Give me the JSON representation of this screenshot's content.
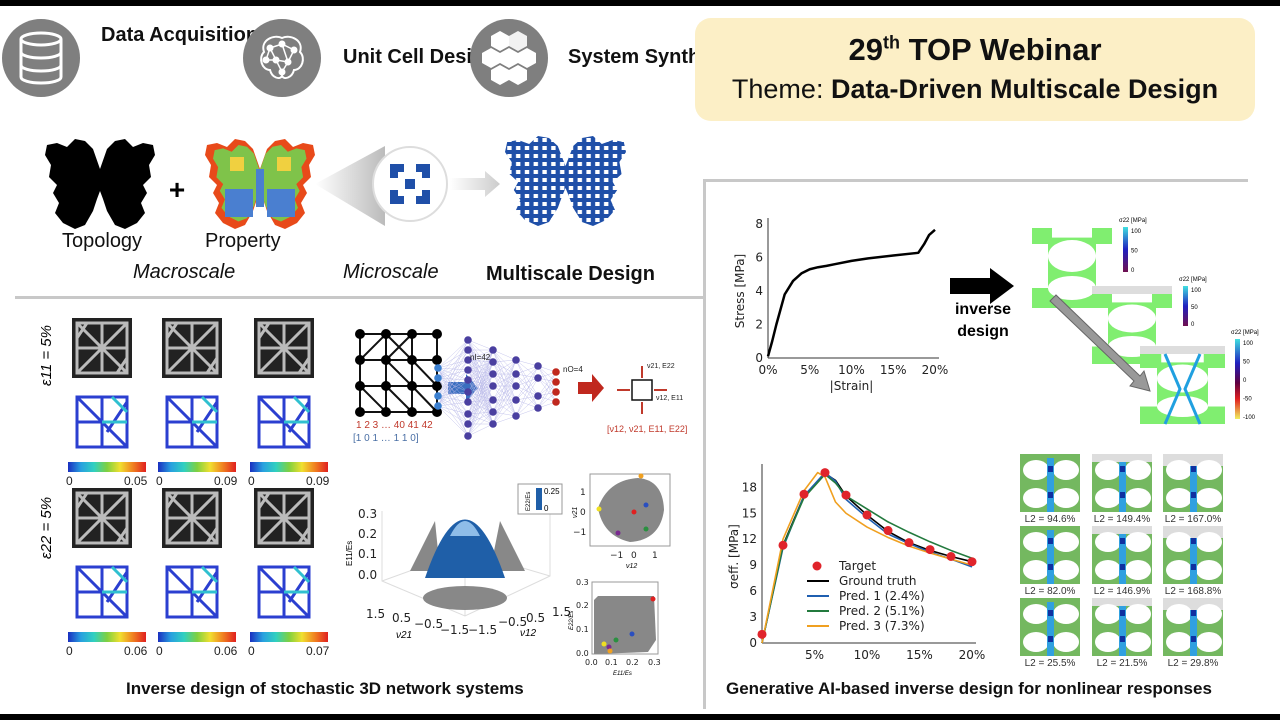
{
  "steps": [
    {
      "label": "Data Acquisition",
      "icon": "database-icon"
    },
    {
      "label": "Unit Cell Design",
      "icon": "network-brain-icon"
    },
    {
      "label": "System Synthesis",
      "icon": "hexagon-cluster-icon"
    }
  ],
  "title": {
    "number": "29",
    "suffix": "th",
    "rest": " TOP Webinar",
    "theme_prefix": "Theme: ",
    "theme": "Data-Driven Multiscale Design"
  },
  "macro": {
    "topology": "Topology",
    "plus": "+",
    "property": "Property",
    "macroscale": "Macroscale",
    "microscale": "Microscale",
    "multiscale": "Multiscale Design"
  },
  "lattice": {
    "row1_label": "ε11 = 5%",
    "row2_label": "ε22 = 5%",
    "colorbar_min": "0",
    "row1_max": [
      "0.05",
      "0.09",
      "0.09"
    ],
    "row2_max": [
      "0.06",
      "0.06",
      "0.07"
    ]
  },
  "nn": {
    "node_numbers": "1   2   3   …   40  41  42",
    "vector": "[1  0  1   …   1   1   0]",
    "n_in": "nI=42",
    "n_out": "nO=4",
    "top_out": "ν21, E22",
    "right_out": "ν12, E11",
    "output_vec": "[ν12, ν21, E11, E22]"
  },
  "scatter3d": {
    "zticks": [
      "0.3",
      "0.2",
      "0.1",
      "0.0"
    ],
    "zlabel": "E11/Es",
    "colorbar_label": "E22/Es",
    "colorbar_max": "0.25",
    "colorbar_min": "0",
    "xticks_left": [
      "1.5",
      "0.5",
      "−0.5",
      "−1.5"
    ],
    "xlabel_left": "ν21",
    "xticks_right": [
      "−1.5",
      "−0.5",
      "0.5",
      "1.5"
    ],
    "xlabel_right": "ν12"
  },
  "scatter_a": {
    "xticks": [
      "−1",
      "0",
      "1"
    ],
    "yticks": [
      "1",
      "0",
      "−1"
    ],
    "xlabel": "ν12",
    "ylabel": "ν21"
  },
  "scatter_b": {
    "xticks": [
      "0.0",
      "0.1",
      "0.2",
      "0.3"
    ],
    "yticks": [
      "0.3",
      "0.2",
      "0.1",
      "0.0"
    ],
    "xlabel": "E11/Es",
    "ylabel": "E22/Es"
  },
  "left_caption": "Inverse design of stochastic 3D network systems",
  "right_caption": "Generative AI-based inverse design for nonlinear responses",
  "inverse_label": "inverse design",
  "fields": {
    "label": "σ22 [MPa]",
    "cb1": [
      "100",
      "50",
      "0"
    ],
    "cb2": [
      "100",
      "50",
      "0"
    ],
    "cb3": [
      "100",
      "50",
      "0",
      "-50",
      "-100"
    ]
  },
  "l2_labels": [
    "L2 = 94.6%",
    "L2 = 149.4%",
    "L2 = 167.0%",
    "L2 = 82.0%",
    "L2 = 146.9%",
    "L2 = 168.8%",
    "L2 = 25.5%",
    "L2 = 21.5%",
    "L2 = 29.8%"
  ],
  "chart_data": [
    {
      "type": "line",
      "title": "",
      "xlabel": "|Strain|",
      "ylabel": "Stress [MPa]",
      "xlim": [
        0,
        20
      ],
      "ylim": [
        0,
        8
      ],
      "xticks": [
        0,
        5,
        10,
        15,
        20
      ],
      "xtick_labels": [
        "0%",
        "5%",
        "10%",
        "15%",
        "20%"
      ],
      "yticks": [
        0,
        2,
        4,
        6,
        8
      ],
      "series": [
        {
          "name": "stress-strain",
          "color": "#000000",
          "x": [
            0,
            0.5,
            1,
            2,
            3,
            4,
            5,
            6,
            7,
            8,
            10,
            12,
            15,
            18,
            18.7,
            19.3,
            20
          ],
          "y": [
            0.1,
            1.0,
            2.0,
            3.8,
            4.6,
            5.05,
            5.3,
            5.42,
            5.5,
            5.6,
            5.8,
            5.95,
            6.12,
            6.28,
            6.8,
            7.35,
            7.65
          ]
        }
      ]
    },
    {
      "type": "line",
      "title": "",
      "xlabel": "",
      "ylabel": "σeff. [MPa]",
      "xlim": [
        0,
        20
      ],
      "ylim": [
        0,
        20
      ],
      "xticks": [
        5,
        10,
        15,
        20
      ],
      "xtick_labels": [
        "5%",
        "10%",
        "15%",
        "20%"
      ],
      "yticks": [
        0,
        3,
        6,
        9,
        12,
        15,
        18
      ],
      "legend": "center",
      "series": [
        {
          "name": "Target",
          "kind": "scatter",
          "color": "#e0242b",
          "x": [
            0,
            2,
            4,
            6,
            8,
            10,
            12,
            14,
            16,
            18,
            20
          ],
          "y": [
            1,
            11.3,
            17.2,
            19.7,
            17.1,
            14.8,
            13.0,
            11.6,
            10.8,
            10.0,
            9.4
          ]
        },
        {
          "name": "Ground truth",
          "color": "#000000",
          "x": [
            0,
            2,
            4,
            6,
            7,
            8,
            10,
            12,
            14,
            16,
            18,
            20
          ],
          "y": [
            0,
            11.3,
            17.0,
            19.6,
            18.8,
            17.0,
            14.8,
            12.9,
            11.6,
            10.7,
            10.0,
            9.4
          ]
        },
        {
          "name": "Pred. 1 (2.4%)",
          "color": "#1f5fb0",
          "x": [
            0,
            2,
            4,
            6,
            7,
            8,
            10,
            12,
            14,
            16,
            18,
            20
          ],
          "y": [
            0,
            11.0,
            17.0,
            19.7,
            18.7,
            16.6,
            14.5,
            12.6,
            11.5,
            10.5,
            9.7,
            8.8
          ]
        },
        {
          "name": "Pred. 2 (5.1%)",
          "color": "#237a3e",
          "x": [
            0,
            2,
            4,
            6,
            7,
            8,
            10,
            12,
            14,
            16,
            18,
            20
          ],
          "y": [
            0,
            11.2,
            16.8,
            19.5,
            18.5,
            17.0,
            15.5,
            14.0,
            12.8,
            11.7,
            10.7,
            9.8
          ]
        },
        {
          "name": "Pred. 3 (7.3%)",
          "color": "#f0a020",
          "x": [
            0,
            2,
            4,
            5.3,
            6,
            7,
            8,
            10,
            12,
            14,
            16,
            18,
            20
          ],
          "y": [
            0,
            12.0,
            17.6,
            19.7,
            19.2,
            16.3,
            15.0,
            13.4,
            12.2,
            11.2,
            10.4,
            9.7,
            9.0
          ]
        }
      ]
    }
  ]
}
